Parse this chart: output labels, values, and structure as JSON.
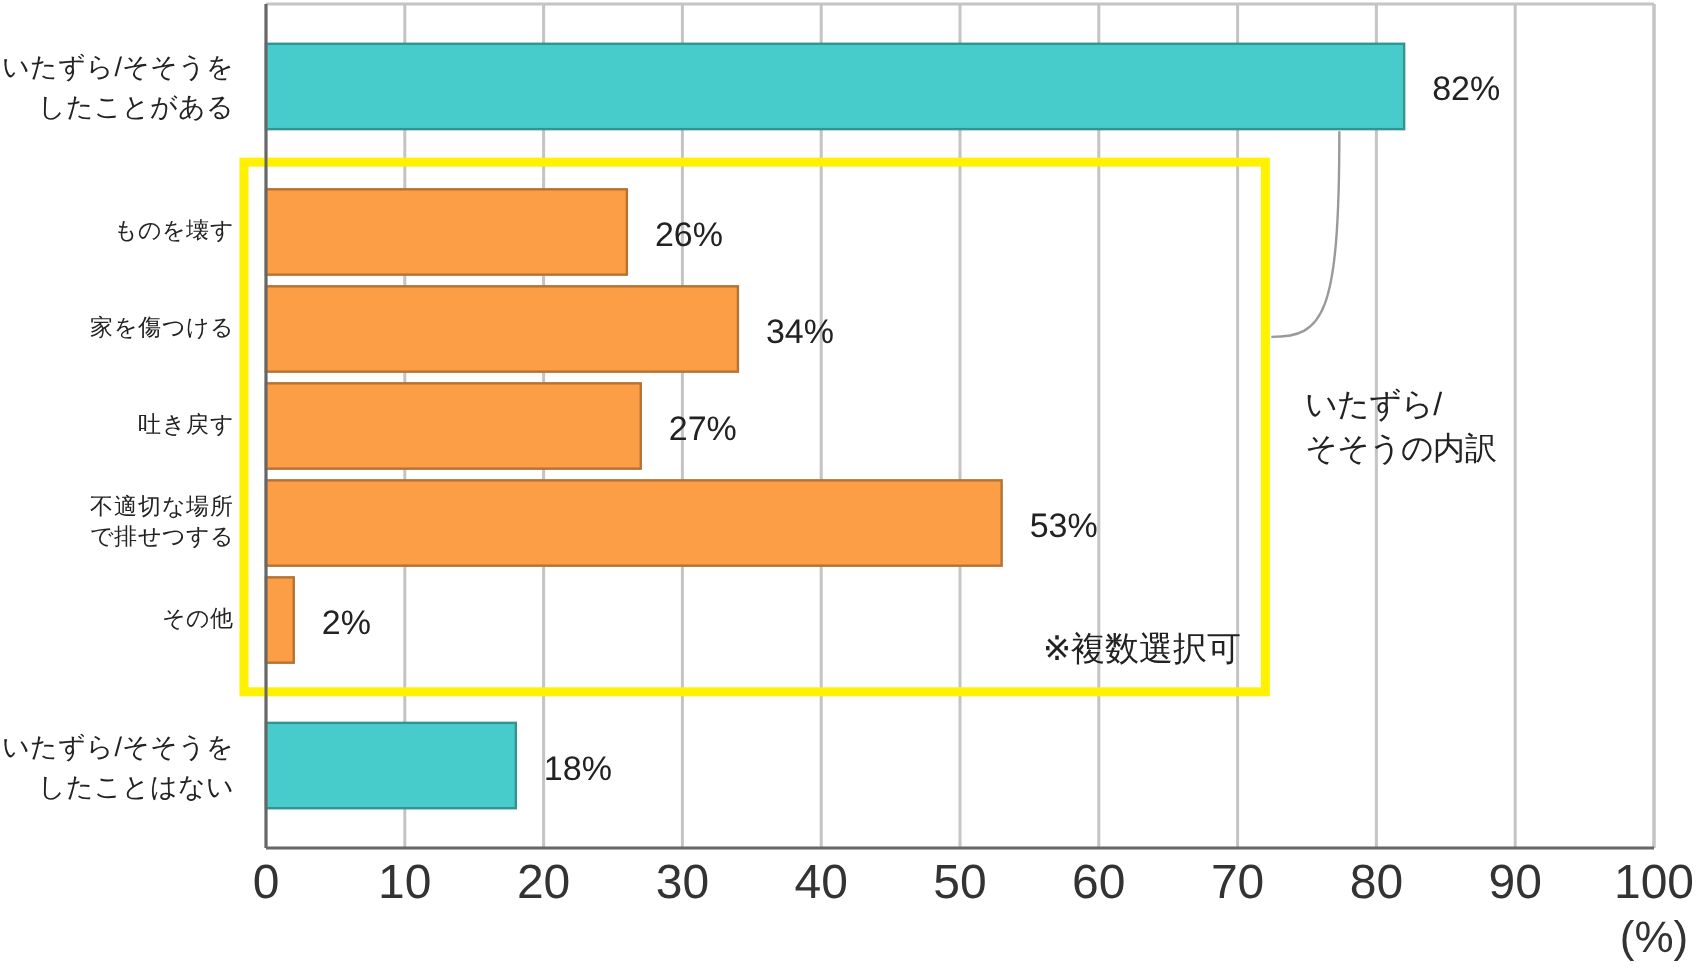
{
  "chart_data": {
    "type": "bar",
    "orientation": "horizontal",
    "categories": [
      "いたずら/そそうをしたことがある",
      "ものを壊す",
      "家を傷つける",
      "吐き戻す",
      "不適切な場所で排せつする",
      "その他",
      "いたずら/そそうをしたことはない"
    ],
    "values": [
      82,
      26,
      34,
      27,
      53,
      2,
      18
    ],
    "colors": [
      "#47cccb",
      "#fb9e46",
      "#fb9e46",
      "#fb9e46",
      "#fb9e46",
      "#fb9e46",
      "#47cccb"
    ],
    "value_labels": [
      "82%",
      "26%",
      "34%",
      "27%",
      "53%",
      "2%",
      "18%"
    ],
    "xlim": [
      0,
      100
    ],
    "xticks": [
      0,
      10,
      20,
      30,
      40,
      50,
      60,
      70,
      80,
      90,
      100
    ],
    "xlabel": "(%)",
    "grid": "x",
    "annotations": [
      "いたずら/そそうの内訳",
      "※複数選択可"
    ]
  }
}
